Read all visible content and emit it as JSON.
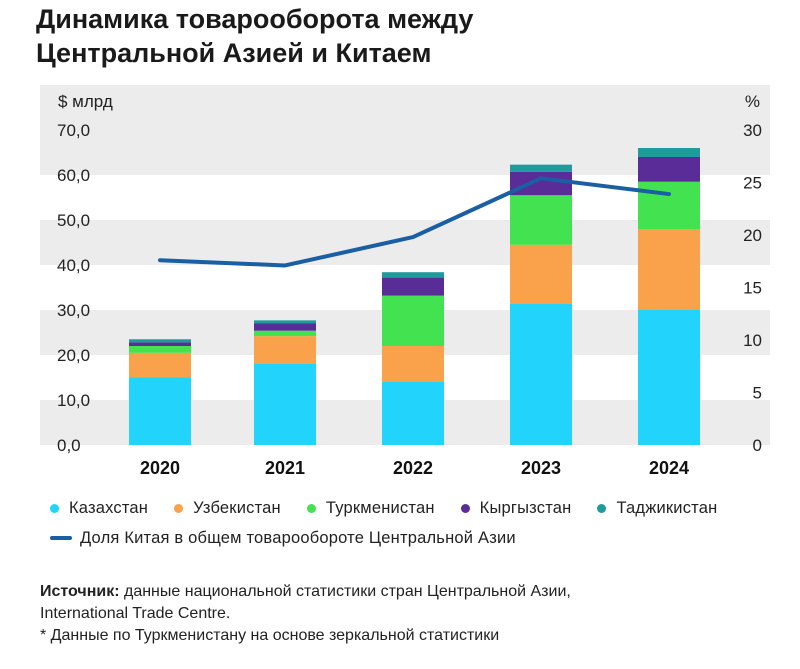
{
  "title": {
    "line1": "Динамика товарооборота между",
    "line2": "Центральной Азией и Китаем"
  },
  "colors": {
    "background_band": "#ececec",
    "Казахстан": "#22d3fb",
    "Узбекистан": "#f9a24b",
    "Туркменистан": "#43e251",
    "Кыргызстан": "#5a2c98",
    "Таджикистан": "#1e9b9a",
    "line": "#1a5ea3"
  },
  "chart_data": {
    "type": "bar",
    "stacked": true,
    "categories": [
      "2020",
      "2021",
      "2022",
      "2023",
      "2024"
    ],
    "ylabel": "$ млрд",
    "y2label": "%",
    "ylim": [
      0,
      70
    ],
    "y2lim": [
      0,
      30
    ],
    "yticks": [
      "70,0",
      "60,0",
      "50,0",
      "40,0",
      "30,0",
      "20,0",
      "10,0",
      "0,0"
    ],
    "y2ticks": [
      "30",
      "25",
      "20",
      "15",
      "10",
      "5",
      "0"
    ],
    "series": [
      {
        "name": "Казахстан",
        "values": [
          15.0,
          18.0,
          14.0,
          31.5,
          30.0
        ]
      },
      {
        "name": "Узбекистан",
        "values": [
          5.5,
          6.2,
          8.0,
          13.0,
          18.0
        ]
      },
      {
        "name": "Туркменистан",
        "values": [
          1.5,
          1.2,
          11.2,
          11.0,
          10.5
        ]
      },
      {
        "name": "Кыргызстан",
        "values": [
          0.8,
          1.6,
          4.0,
          5.2,
          5.5
        ]
      },
      {
        "name": "Таджикистан",
        "values": [
          0.7,
          0.7,
          1.2,
          1.6,
          2.0
        ]
      }
    ],
    "line_series": {
      "name": "Доля Китая в общем товарообороте Центральной Азии",
      "axis": "right",
      "values": [
        17.6,
        17.1,
        19.8,
        25.4,
        23.9
      ]
    },
    "legend_position": "bottom"
  },
  "source": {
    "label": "Источник:",
    "text": "данные национальной статистики стран Центральной Азии,",
    "line2": "International Trade Centre.",
    "note": "* Данные по Туркменистану на основе зеркальной статистики"
  }
}
